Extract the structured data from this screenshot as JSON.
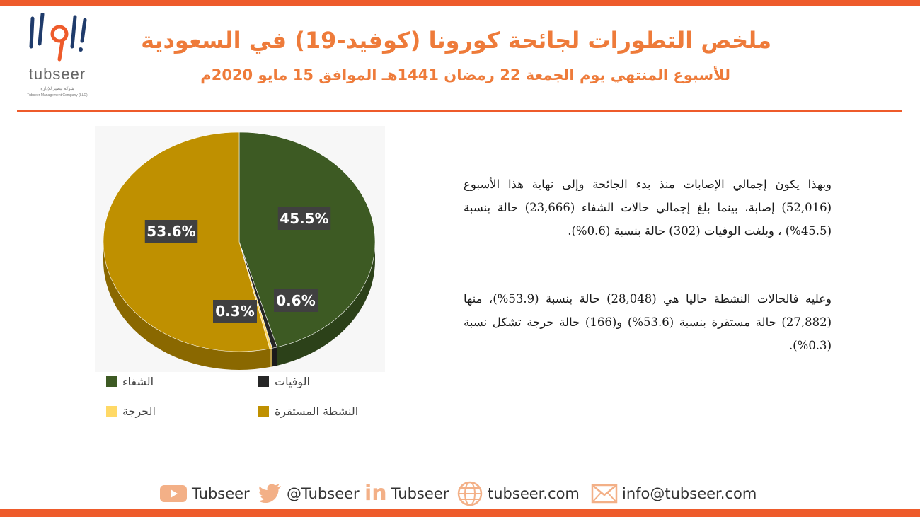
{
  "brand": {
    "logo_text": "tubseer",
    "logo_sub_ar": "شركة تبصير للإدارة",
    "logo_sub_en": "Tubseer Management Company (LLC)"
  },
  "header": {
    "title": "ملخص التطورات لجائحة كورونا (كوفيد-19) في السعودية",
    "subtitle": "للأسبوع المنتهي يوم الجمعة 22 رمضان 1441هـ الموافق 15 مايو 2020م"
  },
  "colors": {
    "accent": "#ee5b2b",
    "title": "#ee7b3a",
    "recovered": "#3d5a23",
    "deaths": "#262626",
    "critical": "#ffd966",
    "stable_active": "#bf9000"
  },
  "chart_data": {
    "type": "pie",
    "style": "3d",
    "slices": [
      {
        "name": "الشفاء",
        "value": 45.5,
        "label": "45.5%",
        "color": "#3d5a23"
      },
      {
        "name": "الوفيات",
        "value": 0.6,
        "label": "0.6%",
        "color": "#262626"
      },
      {
        "name": "الحرجة",
        "value": 0.3,
        "label": "0.3%",
        "color": "#ffd966"
      },
      {
        "name": "النشطة المستقرة",
        "value": 53.6,
        "label": "53.6%",
        "color": "#bf9000"
      }
    ],
    "legend_placement": "bottom",
    "legend": [
      {
        "name": "الشفاء",
        "color": "#3d5a23"
      },
      {
        "name": "الوفيات",
        "color": "#262626"
      },
      {
        "name": "الحرجة",
        "color": "#ffd966"
      },
      {
        "name": "النشطة المستقرة",
        "color": "#bf9000"
      }
    ]
  },
  "paragraphs": [
    "وبهذا يكون إجمالي الإصابات منذ بدء الجائحة وإلى نهاية هذا الأسبوع (52,016) إصابة، بينما بلغ إجمالي حالات الشفاء (23,666) حالة بنسبة (45.5%) ، وبلغت الوفيات (302) حالة بنسبة (0.6%).",
    "وعليه فالحالات النشطة حاليا هي (28,048) حالة بنسبة (53.9%)، منها (27,882) حالة مستقرة بنسبة (53.6%) و(166) حالة حرجة تشكل نسبة (0.3%)."
  ],
  "footer": {
    "youtube": "Tubseer",
    "twitter": "@Tubseer",
    "linkedin": "Tubseer",
    "website": "tubseer.com",
    "email": "info@tubseer.com",
    "linkedin_icon_text": "in"
  }
}
